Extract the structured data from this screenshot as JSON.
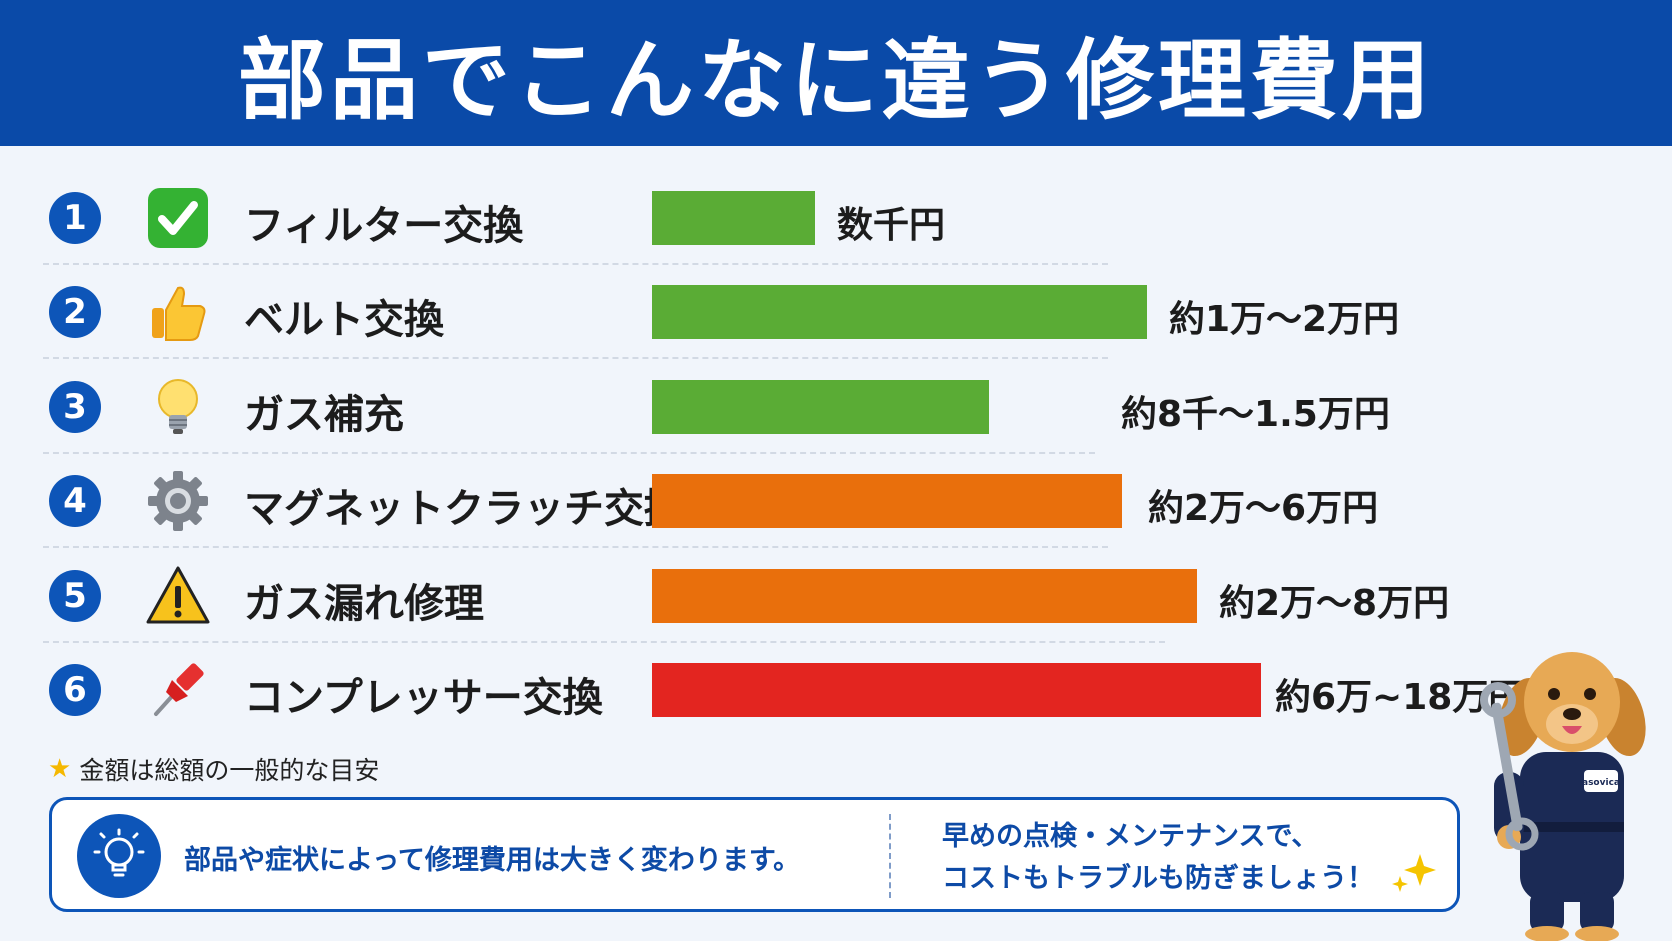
{
  "title": "部品でこんなに違う修理費用",
  "chart_data": {
    "type": "bar",
    "orientation": "horizontal",
    "categories": [
      "フィルター交換",
      "ベルト交換",
      "ガス補充",
      "マグネットクラッチ交換",
      "ガス漏れ修理",
      "コンプレッサー交換"
    ],
    "value_labels": [
      "数千円",
      "約1万〜2万円",
      "約8千〜1.5万円",
      "約2万〜6万円",
      "約2万〜8万円",
      "約6万~18万円"
    ],
    "rank_labels": [
      "1",
      "2",
      "3",
      "4",
      "5",
      "6"
    ],
    "relative_values": [
      0.33,
      1.0,
      0.68,
      0.95,
      1.1,
      1.23
    ],
    "bar_colors": [
      "#5aac35",
      "#5aac35",
      "#5aac35",
      "#e96f0c",
      "#e96f0c",
      "#e32520"
    ],
    "icons": [
      "check-mark-icon",
      "thumbs-up-icon",
      "light-bulb-icon",
      "gear-icon",
      "warning-icon",
      "pushpin-icon"
    ],
    "legend": "none",
    "grid": false
  },
  "note": "金額は総額の一般的な目安",
  "info_box": {
    "left_text": "部品や症状によって修理費用は大きく変わります。",
    "right_line1": "早めの点検・メンテナンスで、",
    "right_line2": "コストもトラブルも防ぎましょう！"
  },
  "mascot": {
    "badge_text": "asovica"
  },
  "colors": {
    "header": "#0a4aa8",
    "accent": "#0d55b8",
    "green": "#5aac35",
    "orange": "#e96f0c",
    "red": "#e32520"
  }
}
